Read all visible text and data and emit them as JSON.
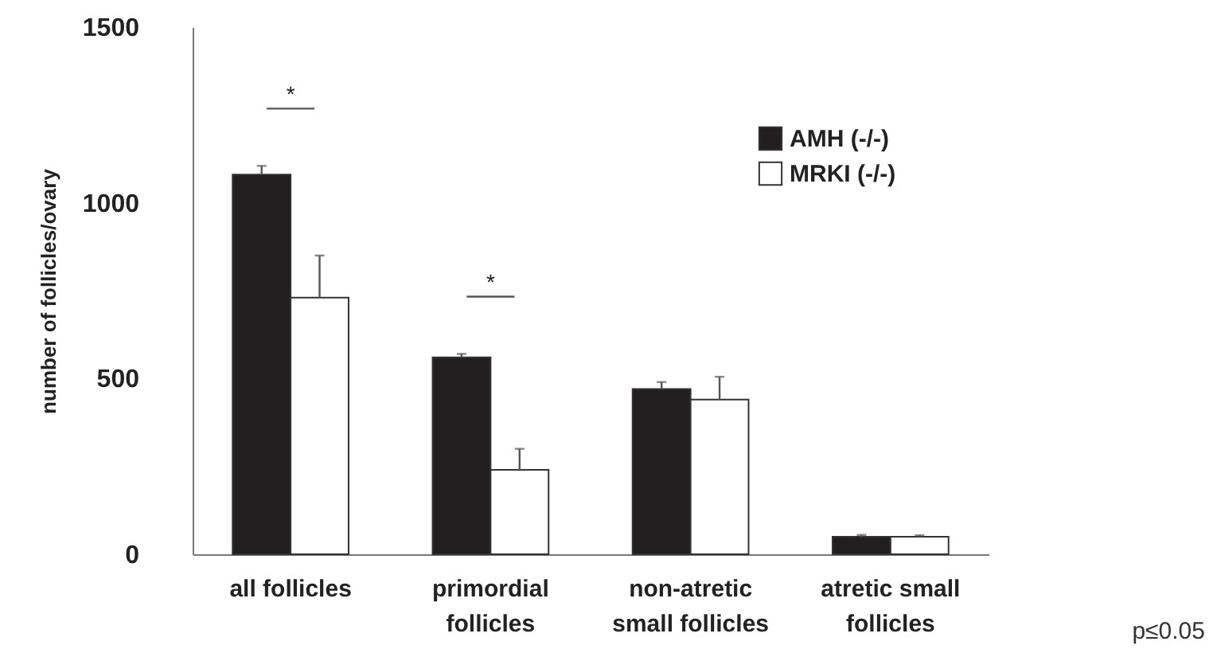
{
  "chart_data": {
    "type": "bar",
    "ylabel": "number of follicles/ovary",
    "categories": [
      "all follicles",
      "primordial\nfollicles",
      "non-atretic\nsmall follicles",
      "atretic small\nfollicles"
    ],
    "series": [
      {
        "name": "AMH (-/-)",
        "color": "#231f20",
        "values": [
          1080,
          560,
          470,
          50
        ],
        "errors": [
          [
            1080,
            1105
          ],
          [
            560,
            570
          ],
          [
            470,
            490
          ],
          [
            50,
            55
          ]
        ]
      },
      {
        "name": "MRKI (-/-)",
        "color": "#ffffff",
        "values": [
          730,
          240,
          440,
          50
        ],
        "errors": [
          [
            730,
            850
          ],
          [
            240,
            300
          ],
          [
            440,
            505
          ],
          [
            50,
            54
          ]
        ]
      }
    ],
    "ylim": [
      0,
      1500
    ],
    "yticks": [
      0,
      500,
      1000,
      1500
    ],
    "grid": false,
    "legend": "top right",
    "annotations": [
      "*",
      "*",
      "p≤0.05"
    ]
  }
}
